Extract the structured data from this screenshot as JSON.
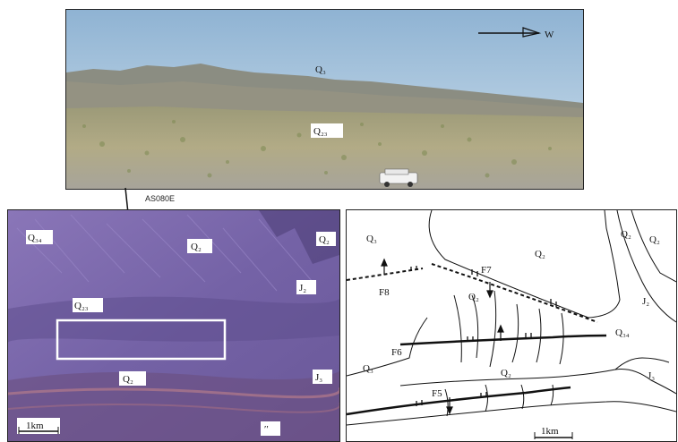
{
  "photo": {
    "north_arrow": "W",
    "labels": [
      "Q₃",
      "Q₂₃"
    ]
  },
  "link_caption": "AS080E",
  "satellite": {
    "labels": [
      "Q₃₄",
      "Q₂",
      "Q₂",
      "Q₂₃",
      "J₂",
      "Q₂",
      "J₃",
      "′′"
    ],
    "scale": "1km"
  },
  "map": {
    "region_labels": [
      "Q₃",
      "Q₂",
      "Q₂",
      "Q₂",
      "Q₂",
      "J₂",
      "Q₃₄",
      "Q₃",
      "Q₂",
      "J₃"
    ],
    "faults": [
      "F8",
      "F7",
      "F6",
      "F5"
    ],
    "scale": "1km"
  },
  "colors": {
    "sky_top": "#9fbfd9",
    "sky_bottom": "#c8dceb",
    "ridge": "#8a8c80",
    "plain": "#a9a27a",
    "satellite": "#7a64a8",
    "satellite_dark": "#5a4a86"
  }
}
